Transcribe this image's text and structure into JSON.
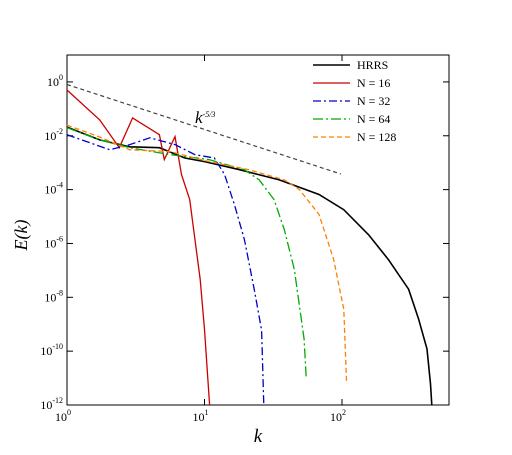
{
  "chart_data": {
    "type": "line",
    "x_label": "k",
    "y_label": "E(k)",
    "xscale": "log",
    "yscale": "log",
    "xlim": [
      1,
      600
    ],
    "ylim": [
      1e-12,
      10
    ],
    "xticks": [
      {
        "value": 1,
        "label": "10",
        "exponent": "0"
      },
      {
        "value": 10,
        "label": "10",
        "exponent": "1"
      },
      {
        "value": 100,
        "label": "10",
        "exponent": "2"
      }
    ],
    "yticks": [
      {
        "value": 1e-12,
        "label": "10",
        "exponent": "-12"
      },
      {
        "value": 1e-10,
        "label": "10",
        "exponent": "-10"
      },
      {
        "value": 1e-08,
        "label": "10",
        "exponent": "-8"
      },
      {
        "value": 1e-06,
        "label": "10",
        "exponent": "-6"
      },
      {
        "value": 0.0001,
        "label": "10",
        "exponent": "-4"
      },
      {
        "value": 0.01,
        "label": "10",
        "exponent": "-2"
      },
      {
        "value": 1,
        "label": "10",
        "exponent": "0"
      }
    ],
    "legend": "top-right",
    "reference_line": {
      "label": "k",
      "exponent": "-5/3",
      "color": "#444444",
      "x": [
        1,
        98
      ],
      "values": [
        0.8,
        0.00038
      ]
    },
    "series": [
      {
        "name": "HRRS",
        "color": "#000000",
        "x": [
          1,
          1.73,
          2.86,
          4.7,
          7.2,
          10,
          18,
          35,
          68,
          103,
          156,
          218,
          258,
          305,
          360,
          415,
          440,
          450
        ],
        "values": [
          0.021,
          0.007,
          0.0039,
          0.0036,
          0.0015,
          0.0011,
          0.00055,
          0.00023,
          6.6e-05,
          1.8e-05,
          2.1e-06,
          2.5e-07,
          7e-08,
          2e-08,
          1.6e-09,
          1.2e-10,
          6e-12,
          1e-12
        ]
      },
      {
        "name": "N = 16",
        "color": "#cc0000",
        "x": [
          1,
          1.73,
          2.4,
          3,
          4.7,
          5.1,
          6.1,
          6.8,
          7.8,
          9.3,
          10,
          10.9
        ],
        "values": [
          0.5,
          0.039,
          0.0036,
          0.046,
          0.011,
          0.0013,
          0.0093,
          0.00036,
          4.3e-05,
          4.6e-08,
          6.4e-10,
          1e-12
        ]
      },
      {
        "name": "N = 32",
        "color": "#0000cc",
        "x": [
          1,
          1.47,
          2.05,
          2.86,
          4,
          6.1,
          8.5,
          11.8,
          14,
          16.5,
          19.5,
          23,
          26,
          27
        ],
        "values": [
          0.011,
          0.0055,
          0.003,
          0.0047,
          0.0084,
          0.0047,
          0.002,
          0.0015,
          0.00036,
          2.8e-05,
          1.4e-06,
          2e-08,
          6e-10,
          1e-12
        ]
      },
      {
        "name": "N = 64",
        "color": "#00aa00",
        "x": [
          1,
          1.73,
          2.86,
          5.6,
          10.8,
          19.5,
          25,
          32,
          38,
          45,
          53,
          55
        ],
        "values": [
          0.02,
          0.007,
          0.0036,
          0.002,
          0.0013,
          0.00055,
          0.00023,
          4.3e-05,
          3.4e-06,
          1.1e-07,
          2.8e-10,
          9e-12
        ]
      },
      {
        "name": "N = 128",
        "color": "#ff8000",
        "x": [
          1,
          1.73,
          2.86,
          5.6,
          10.8,
          21,
          38,
          49,
          68,
          87,
          103,
          108
        ],
        "values": [
          0.025,
          0.009,
          0.003,
          0.0026,
          0.0011,
          0.00055,
          0.00023,
          0.0001,
          1.2e-05,
          2.5e-07,
          3.6e-09,
          6e-12
        ]
      }
    ]
  }
}
